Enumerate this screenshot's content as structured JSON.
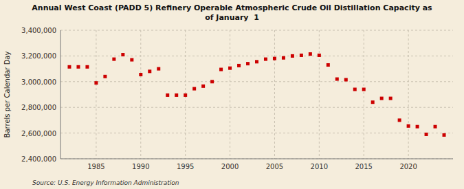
{
  "chart_data": {
    "type": "scatter",
    "title": "Annual West Coast (PADD 5) Refinery Operable Atmospheric Crude Oil Distillation Capacity as\nof January  1",
    "y_label": "Barrels per Calendar Day",
    "annotations": [
      "Source: U.S. Energy Information Administration"
    ],
    "color": "#cc0000",
    "marker": "square",
    "grid": true,
    "x": [
      1982,
      1983,
      1984,
      1985,
      1986,
      1987,
      1988,
      1989,
      1990,
      1991,
      1992,
      1993,
      1994,
      1995,
      1996,
      1997,
      1998,
      1999,
      2000,
      2001,
      2002,
      2003,
      2004,
      2005,
      2006,
      2007,
      2008,
      2009,
      2010,
      2011,
      2012,
      2013,
      2014,
      2015,
      2016,
      2017,
      2018,
      2019,
      2020,
      2021,
      2022,
      2023,
      2024
    ],
    "values": [
      3115000,
      3115000,
      3115000,
      2990000,
      3040000,
      3175000,
      3210000,
      3170000,
      3055000,
      3080000,
      3100000,
      2895000,
      2895000,
      2895000,
      2945000,
      2965000,
      3000000,
      3095000,
      3105000,
      3125000,
      3140000,
      3155000,
      3175000,
      3180000,
      3185000,
      3200000,
      3205000,
      3215000,
      3205000,
      3130000,
      3020000,
      3015000,
      2940000,
      2940000,
      2840000,
      2870000,
      2870000,
      2700000,
      2655000,
      2650000,
      2590000,
      2650000,
      2585000
    ],
    "xlim": [
      1981,
      2025
    ],
    "xticks": [
      1985,
      1990,
      1995,
      2000,
      2005,
      2010,
      2015,
      2020
    ],
    "ylim": [
      2400000,
      3400000
    ],
    "yticks": [
      {
        "value": 2400000,
        "label": "2,400,000"
      },
      {
        "value": 2600000,
        "label": "2,600,000"
      },
      {
        "value": 2800000,
        "label": "2,800,000"
      },
      {
        "value": 3000000,
        "label": "3,000,000"
      },
      {
        "value": 3200000,
        "label": "3,200,000"
      },
      {
        "value": 3400000,
        "label": "3,400,000"
      }
    ]
  }
}
